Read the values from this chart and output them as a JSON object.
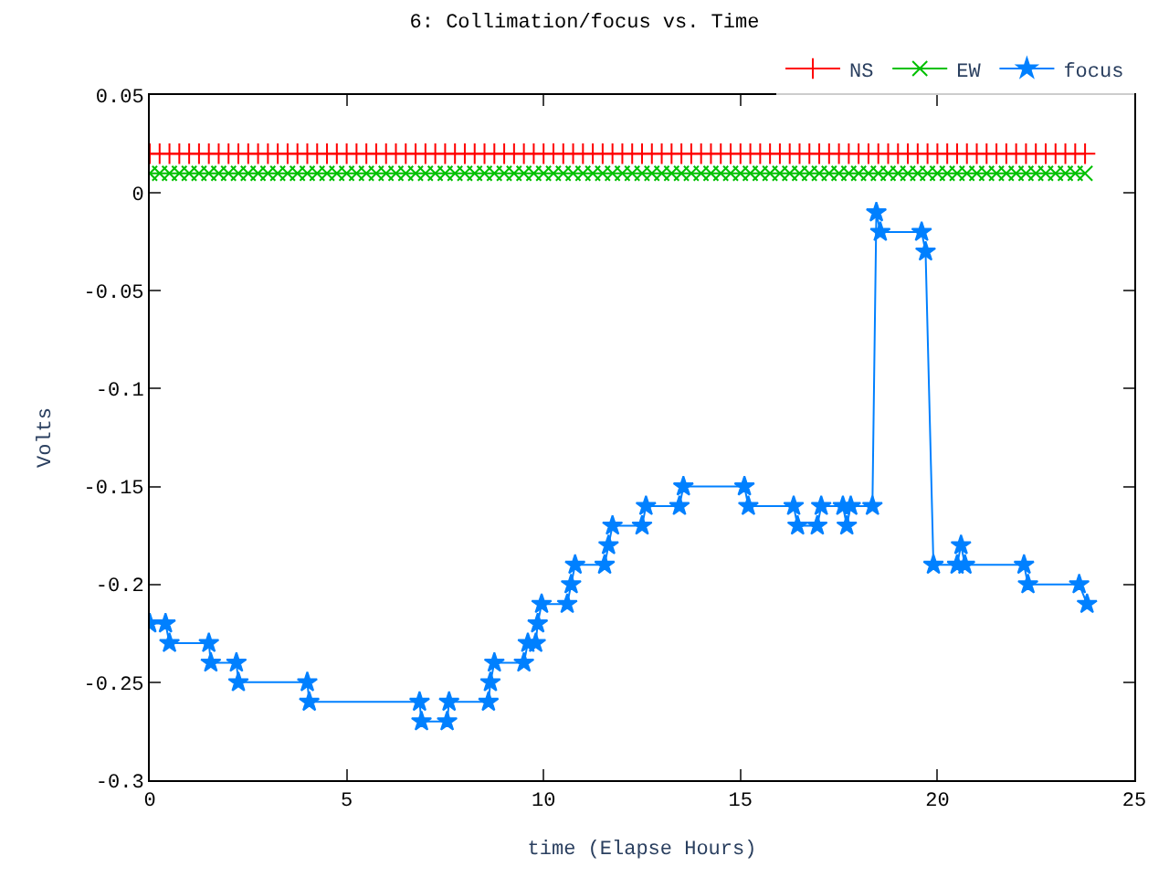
{
  "chart_data": {
    "type": "line",
    "title": "6: Collimation/focus vs. Time",
    "xlabel": "time (Elapse Hours)",
    "ylabel": "Volts",
    "xlim": [
      0,
      25
    ],
    "xticks": [
      0,
      5,
      10,
      15,
      20,
      25
    ],
    "ylim": [
      -0.3,
      0.05
    ],
    "yticks": [
      -0.3,
      -0.25,
      -0.2,
      -0.15,
      -0.1,
      -0.05,
      0,
      0.05
    ],
    "grid": false,
    "legend": "top right",
    "series": [
      {
        "name": "NS",
        "color": "#ff0000",
        "marker": "plus",
        "x": [
          0,
          0.25,
          0.5,
          0.75,
          1,
          1.25,
          1.5,
          1.75,
          2,
          2.25,
          2.5,
          2.75,
          3,
          3.25,
          3.5,
          3.75,
          4,
          4.25,
          4.5,
          4.75,
          5,
          5.25,
          5.5,
          5.75,
          6,
          6.25,
          6.5,
          6.75,
          7,
          7.25,
          7.5,
          7.75,
          8,
          8.25,
          8.5,
          8.75,
          9,
          9.25,
          9.5,
          9.75,
          10,
          10.25,
          10.5,
          10.75,
          11,
          11.25,
          11.5,
          11.75,
          12,
          12.25,
          12.5,
          12.75,
          13,
          13.25,
          13.5,
          13.75,
          14,
          14.25,
          14.5,
          14.75,
          15,
          15.25,
          15.5,
          15.75,
          16,
          16.25,
          16.5,
          16.75,
          17,
          17.25,
          17.5,
          17.75,
          18,
          18.25,
          18.5,
          18.75,
          19,
          19.25,
          19.5,
          19.75,
          20,
          20.25,
          20.5,
          20.75,
          21,
          21.25,
          21.5,
          21.75,
          22,
          22.25,
          22.5,
          22.75,
          23,
          23.25,
          23.5,
          23.75
        ],
        "values": [
          0.02,
          0.02,
          0.02,
          0.02,
          0.02,
          0.02,
          0.02,
          0.02,
          0.02,
          0.02,
          0.02,
          0.02,
          0.02,
          0.02,
          0.02,
          0.02,
          0.02,
          0.02,
          0.02,
          0.02,
          0.02,
          0.02,
          0.02,
          0.02,
          0.02,
          0.02,
          0.02,
          0.02,
          0.02,
          0.02,
          0.02,
          0.02,
          0.02,
          0.02,
          0.02,
          0.02,
          0.02,
          0.02,
          0.02,
          0.02,
          0.02,
          0.02,
          0.02,
          0.02,
          0.02,
          0.02,
          0.02,
          0.02,
          0.02,
          0.02,
          0.02,
          0.02,
          0.02,
          0.02,
          0.02,
          0.02,
          0.02,
          0.02,
          0.02,
          0.02,
          0.02,
          0.02,
          0.02,
          0.02,
          0.02,
          0.02,
          0.02,
          0.02,
          0.02,
          0.02,
          0.02,
          0.02,
          0.02,
          0.02,
          0.02,
          0.02,
          0.02,
          0.02,
          0.02,
          0.02,
          0.02,
          0.02,
          0.02,
          0.02,
          0.02,
          0.02,
          0.02,
          0.02,
          0.02,
          0.02,
          0.02,
          0.02,
          0.02,
          0.02,
          0.02,
          0.02
        ]
      },
      {
        "name": "EW",
        "color": "#00c000",
        "marker": "cross",
        "x": [
          0,
          0.25,
          0.5,
          0.75,
          1,
          1.25,
          1.5,
          1.75,
          2,
          2.25,
          2.5,
          2.75,
          3,
          3.25,
          3.5,
          3.75,
          4,
          4.25,
          4.5,
          4.75,
          5,
          5.25,
          5.5,
          5.75,
          6,
          6.25,
          6.5,
          6.75,
          7,
          7.25,
          7.5,
          7.75,
          8,
          8.25,
          8.5,
          8.75,
          9,
          9.25,
          9.5,
          9.75,
          10,
          10.25,
          10.5,
          10.75,
          11,
          11.25,
          11.5,
          11.75,
          12,
          12.25,
          12.5,
          12.75,
          13,
          13.25,
          13.5,
          13.75,
          14,
          14.25,
          14.5,
          14.75,
          15,
          15.25,
          15.5,
          15.75,
          16,
          16.25,
          16.5,
          16.75,
          17,
          17.25,
          17.5,
          17.75,
          18,
          18.25,
          18.5,
          18.75,
          19,
          19.25,
          19.5,
          19.75,
          20,
          20.25,
          20.5,
          20.75,
          21,
          21.25,
          21.5,
          21.75,
          22,
          22.25,
          22.5,
          22.75,
          23,
          23.25,
          23.5,
          23.75
        ],
        "values": [
          0.01,
          0.01,
          0.01,
          0.01,
          0.01,
          0.01,
          0.01,
          0.01,
          0.01,
          0.01,
          0.01,
          0.01,
          0.01,
          0.01,
          0.01,
          0.01,
          0.01,
          0.01,
          0.01,
          0.01,
          0.01,
          0.01,
          0.01,
          0.01,
          0.01,
          0.01,
          0.01,
          0.01,
          0.01,
          0.01,
          0.01,
          0.01,
          0.01,
          0.01,
          0.01,
          0.01,
          0.01,
          0.01,
          0.01,
          0.01,
          0.01,
          0.01,
          0.01,
          0.01,
          0.01,
          0.01,
          0.01,
          0.01,
          0.01,
          0.01,
          0.01,
          0.01,
          0.01,
          0.01,
          0.01,
          0.01,
          0.01,
          0.01,
          0.01,
          0.01,
          0.01,
          0.01,
          0.01,
          0.01,
          0.01,
          0.01,
          0.01,
          0.01,
          0.01,
          0.01,
          0.01,
          0.01,
          0.01,
          0.01,
          0.01,
          0.01,
          0.01,
          0.01,
          0.01,
          0.01,
          0.01,
          0.01,
          0.01,
          0.01,
          0.01,
          0.01,
          0.01,
          0.01,
          0.01,
          0.01,
          0.01,
          0.01,
          0.01,
          0.01,
          0.01,
          0.01
        ]
      },
      {
        "name": "focus",
        "color": "#0080ff",
        "marker": "star",
        "x": [
          0,
          0.4,
          0.5,
          1.5,
          1.55,
          2.2,
          2.25,
          4.0,
          4.05,
          6.85,
          6.9,
          7.55,
          7.6,
          8.6,
          8.65,
          8.75,
          9.5,
          9.6,
          9.8,
          9.85,
          9.95,
          10.6,
          10.7,
          10.8,
          11.55,
          11.65,
          11.75,
          12.5,
          12.6,
          13.45,
          13.55,
          15.1,
          15.2,
          16.35,
          16.45,
          16.95,
          17.05,
          17.6,
          17.7,
          17.8,
          18.35,
          18.45,
          18.55,
          19.6,
          19.7,
          19.9,
          20.5,
          20.6,
          20.7,
          22.2,
          22.3,
          23.6,
          23.8
        ],
        "values": [
          -0.22,
          -0.22,
          -0.23,
          -0.23,
          -0.24,
          -0.24,
          -0.25,
          -0.25,
          -0.26,
          -0.26,
          -0.27,
          -0.27,
          -0.26,
          -0.26,
          -0.25,
          -0.24,
          -0.24,
          -0.23,
          -0.23,
          -0.22,
          -0.21,
          -0.21,
          -0.2,
          -0.19,
          -0.19,
          -0.18,
          -0.17,
          -0.17,
          -0.16,
          -0.16,
          -0.15,
          -0.15,
          -0.16,
          -0.16,
          -0.17,
          -0.17,
          -0.16,
          -0.16,
          -0.17,
          -0.16,
          -0.16,
          -0.01,
          -0.02,
          -0.02,
          -0.03,
          -0.19,
          -0.19,
          -0.18,
          -0.19,
          -0.19,
          -0.2,
          -0.2,
          -0.21
        ]
      }
    ]
  }
}
